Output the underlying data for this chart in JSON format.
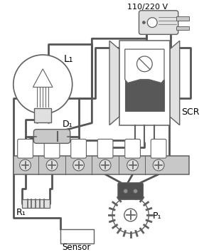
{
  "bg": "#ffffff",
  "lc": "#606060",
  "lc2": "#404040",
  "gray1": "#e0e0e0",
  "gray2": "#c8c8c8",
  "gray3": "#909090",
  "gray4": "#606060",
  "dark": "#585858",
  "label_L1": "L₁",
  "label_SCR": "SCR",
  "label_D1": "D₁",
  "label_R1": "R₁",
  "label_P1": "P₁",
  "label_sensor": "Sensor",
  "label_voltage": "110/220 V",
  "wire_color": "#555555",
  "wire_lw": 2.0
}
